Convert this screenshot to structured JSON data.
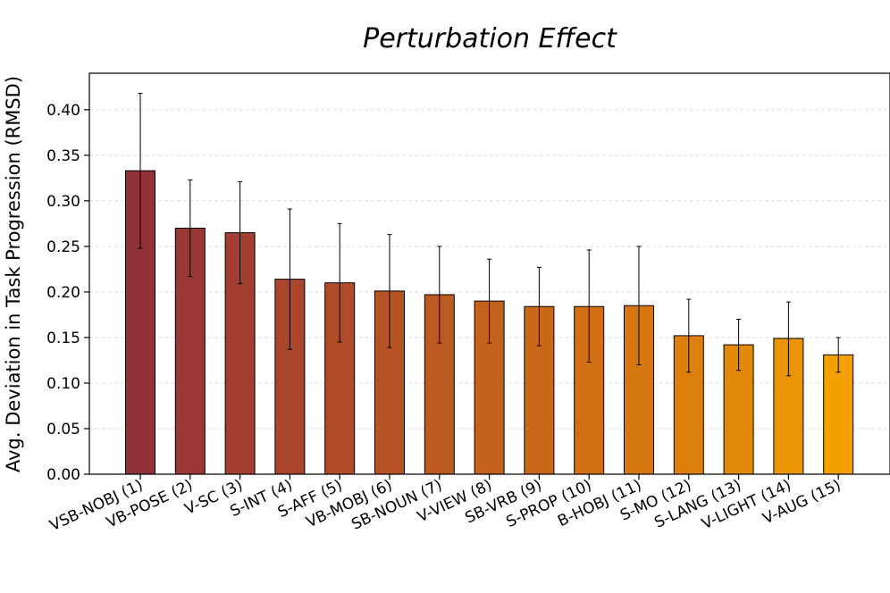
{
  "chart_data": {
    "type": "bar",
    "title": "Perturbation Effect",
    "xlabel": "",
    "ylabel": "Avg. Deviation in Task Progression (RMSD)",
    "ylim": [
      0,
      0.44
    ],
    "yticks": [
      "0.00",
      "0.05",
      "0.10",
      "0.15",
      "0.20",
      "0.25",
      "0.30",
      "0.35",
      "0.40"
    ],
    "grid": "horizontal dashed",
    "categories": [
      "VSB-NOBJ (1)",
      "VB-POSE (2)",
      "V-SC (3)",
      "S-INT (4)",
      "S-AFF (5)",
      "VB-MOBJ (6)",
      "SB-NOUN (7)",
      "V-VIEW (8)",
      "SB-VRB (9)",
      "S-PROP (10)",
      "B-HOBJ (11)",
      "S-MO (12)",
      "S-LANG (13)",
      "V-LIGHT (14)",
      "V-AUG (15)"
    ],
    "values": [
      0.333,
      0.27,
      0.265,
      0.214,
      0.21,
      0.201,
      0.197,
      0.19,
      0.184,
      0.184,
      0.185,
      0.152,
      0.142,
      0.149,
      0.131
    ],
    "error_low": [
      0.248,
      0.217,
      0.209,
      0.137,
      0.145,
      0.139,
      0.144,
      0.144,
      0.141,
      0.123,
      0.12,
      0.112,
      0.114,
      0.108,
      0.112
    ],
    "error_high": [
      0.418,
      0.323,
      0.321,
      0.291,
      0.275,
      0.263,
      0.25,
      0.236,
      0.227,
      0.246,
      0.25,
      0.192,
      0.17,
      0.189,
      0.15
    ],
    "colors": [
      "#913239",
      "#9b3735",
      "#a43e31",
      "#ab452d",
      "#b14c29",
      "#b75225",
      "#bd5922",
      "#c4621d",
      "#ca6819",
      "#d17015",
      "#d67712",
      "#de800d",
      "#e48a08",
      "#eb9505",
      "#f4a000"
    ]
  }
}
